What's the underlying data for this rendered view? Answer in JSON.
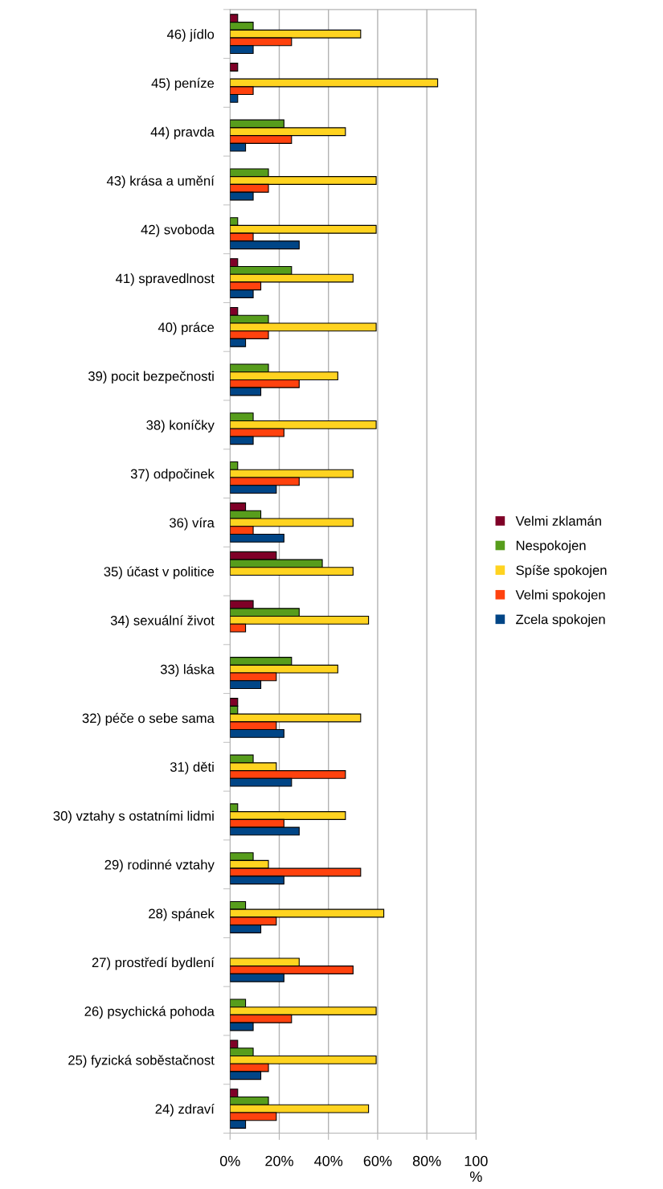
{
  "chart_data": {
    "type": "bar",
    "orientation": "horizontal",
    "categories": [
      "46) jídlo",
      "45) peníze",
      "44) pravda",
      "43) krása a umění",
      "42) svoboda",
      "41) spravedlnost",
      "40) práce",
      "39) pocit bezpečnosti",
      "38) koníčky",
      "37) odpočinek",
      "36) víra",
      "35) účast v politice",
      "34) sexuální život",
      "33) láska",
      "32) péče o sebe sama",
      "31) děti",
      "30) vztahy s ostatními lidmi",
      "29) rodinné vztahy",
      "28) spánek",
      "27) prostředí bydlení",
      "26) psychická pohoda",
      "25) fyzická soběstačnost",
      "24) zdraví"
    ],
    "series": [
      {
        "name": "Velmi zklamán",
        "color": "#7f0027",
        "values": [
          3.1,
          3.1,
          0,
          0,
          0,
          3.1,
          3.1,
          0,
          0,
          0,
          6.3,
          18.8,
          9.4,
          0,
          3.1,
          0,
          0,
          0,
          0,
          0,
          0,
          3.1,
          3.1
        ]
      },
      {
        "name": "Nespokojen",
        "color": "#579d1c",
        "values": [
          9.4,
          0,
          21.9,
          15.6,
          3.1,
          25,
          15.6,
          15.6,
          9.4,
          3.1,
          12.5,
          37.5,
          28.1,
          25,
          3.1,
          9.4,
          3.1,
          9.4,
          6.3,
          0,
          6.3,
          9.4,
          15.6
        ]
      },
      {
        "name": "Spíše spokojen",
        "color": "#ffd320",
        "values": [
          53.1,
          84.4,
          46.9,
          59.4,
          59.4,
          50,
          59.4,
          43.8,
          59.4,
          50,
          50,
          50,
          56.3,
          43.8,
          53.1,
          18.8,
          46.9,
          15.6,
          62.5,
          28.1,
          59.4,
          59.4,
          56.3
        ]
      },
      {
        "name": "Velmi spokojen",
        "color": "#ff420e",
        "values": [
          25,
          9.4,
          25,
          15.6,
          9.4,
          12.5,
          15.6,
          28.1,
          21.9,
          28.1,
          9.4,
          0,
          6.3,
          18.8,
          18.8,
          46.9,
          21.9,
          53.1,
          18.8,
          50,
          25,
          15.6,
          18.8
        ]
      },
      {
        "name": "Zcela spokojen",
        "color": "#004586",
        "values": [
          9.4,
          3.1,
          6.3,
          9.4,
          28.1,
          9.4,
          6.3,
          12.5,
          9.4,
          18.8,
          21.9,
          0,
          0,
          12.5,
          21.9,
          25,
          28.1,
          21.9,
          12.5,
          21.9,
          9.4,
          12.5,
          6.3
        ]
      }
    ],
    "xlim": [
      0,
      100
    ],
    "xticks": [
      {
        "value": 0,
        "label": "0%"
      },
      {
        "value": 20,
        "label": "20%"
      },
      {
        "value": 40,
        "label": "40%"
      },
      {
        "value": 60,
        "label": "60%"
      },
      {
        "value": 80,
        "label": "80%"
      },
      {
        "value": 100,
        "label": "100\n%"
      }
    ],
    "grid": "x",
    "legend": "right"
  }
}
